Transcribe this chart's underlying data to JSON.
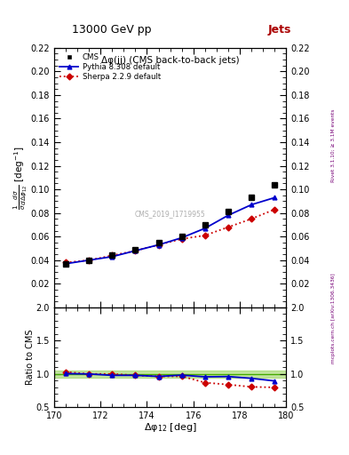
{
  "title_top": "13000 GeV pp",
  "title_right": "Jets",
  "plot_title": "Δφ(jj) (CMS back-to-back jets)",
  "watermark": "CMS_2019_I1719955",
  "right_label_top": "Rivet 3.1.10; ≥ 3.1M events",
  "right_label_bot": "mcplots.cern.ch [arXiv:1306.3436]",
  "cms_x": [
    170.5,
    171.5,
    172.5,
    173.5,
    174.5,
    175.5,
    176.5,
    177.5,
    178.5,
    179.5
  ],
  "cms_y": [
    0.037,
    0.04,
    0.044,
    0.049,
    0.055,
    0.06,
    0.07,
    0.081,
    0.093,
    0.104
  ],
  "pythia_x": [
    170.5,
    171.5,
    172.5,
    173.5,
    174.5,
    175.5,
    176.5,
    177.5,
    178.5,
    179.5
  ],
  "pythia_y": [
    0.037,
    0.04,
    0.043,
    0.048,
    0.053,
    0.059,
    0.067,
    0.078,
    0.087,
    0.093
  ],
  "sherpa_x": [
    170.5,
    171.5,
    172.5,
    173.5,
    174.5,
    175.5,
    176.5,
    177.5,
    178.5,
    179.5
  ],
  "sherpa_y": [
    0.038,
    0.04,
    0.044,
    0.048,
    0.053,
    0.058,
    0.061,
    0.068,
    0.075,
    0.083
  ],
  "ratio_pythia_y": [
    1.005,
    1.0,
    0.979,
    0.979,
    0.963,
    0.982,
    0.957,
    0.961,
    0.934,
    0.895
  ],
  "ratio_sherpa_y": [
    1.03,
    1.0,
    1.0,
    0.979,
    0.963,
    0.965,
    0.87,
    0.84,
    0.806,
    0.798
  ],
  "xlim": [
    170,
    180
  ],
  "ylim_main": [
    0.0,
    0.22
  ],
  "ylim_ratio": [
    0.5,
    2.0
  ],
  "cms_color": "#000000",
  "pythia_color": "#0000CC",
  "sherpa_color": "#CC0000",
  "ratio_band_color": "#00BB00",
  "jets_color": "#AA0000",
  "xlabel": "Δφ$_{12}$ [deg]",
  "ylabel": "$\\frac{1}{\\sigma}\\frac{d\\sigma}{d\\Delta\\phi_{12}}$ [deg$^{-1}$]",
  "ylabel_ratio": "Ratio to CMS",
  "xticks": [
    170,
    172,
    174,
    176,
    178,
    180
  ],
  "yticks_main": [
    0.02,
    0.04,
    0.06,
    0.08,
    0.1,
    0.12,
    0.14,
    0.16,
    0.18,
    0.2,
    0.22
  ],
  "yticks_ratio": [
    0.5,
    1.0,
    1.5,
    2.0
  ]
}
